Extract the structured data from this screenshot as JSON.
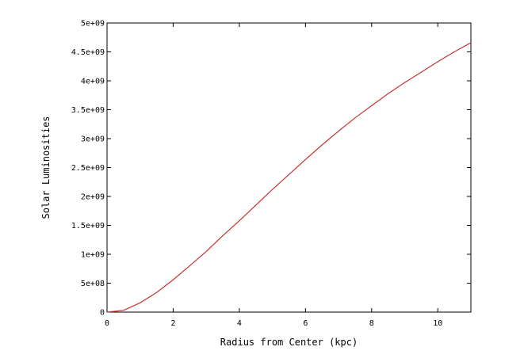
{
  "chart_data": {
    "type": "line",
    "title": "",
    "xlabel": "Radius from Center (kpc)",
    "ylabel": "Solar Luminosities",
    "xlim": [
      0,
      11
    ],
    "ylim": [
      0,
      5000000000
    ],
    "x_ticks": [
      0,
      2,
      4,
      6,
      8,
      10
    ],
    "x_tick_labels": [
      "0",
      "2",
      "4",
      "6",
      "8",
      "10"
    ],
    "y_ticks": [
      0,
      500000000,
      1000000000,
      1500000000,
      2000000000,
      2500000000,
      3000000000,
      3500000000,
      4000000000,
      4500000000,
      5000000000
    ],
    "y_tick_labels": [
      "0",
      "5e+08",
      "1e+09",
      "1.5e+09",
      "2e+09",
      "2.5e+09",
      "3e+09",
      "3.5e+09",
      "4e+09",
      "4.5e+09",
      "5e+09"
    ],
    "grid": false,
    "line_color": "#c83232",
    "series": [
      {
        "x": [
          0,
          0.5,
          1,
          1.5,
          2,
          2.5,
          3,
          3.5,
          4,
          4.5,
          5,
          5.5,
          6,
          6.5,
          7,
          7.5,
          8,
          8.5,
          9,
          9.5,
          10,
          10.5,
          11
        ],
        "values": [
          0,
          30000000,
          160000000,
          340000000,
          560000000,
          800000000,
          1050000000,
          1320000000,
          1580000000,
          1850000000,
          2120000000,
          2380000000,
          2640000000,
          2890000000,
          3130000000,
          3360000000,
          3570000000,
          3780000000,
          3970000000,
          4150000000,
          4330000000,
          4500000000,
          4660000000
        ]
      }
    ]
  }
}
